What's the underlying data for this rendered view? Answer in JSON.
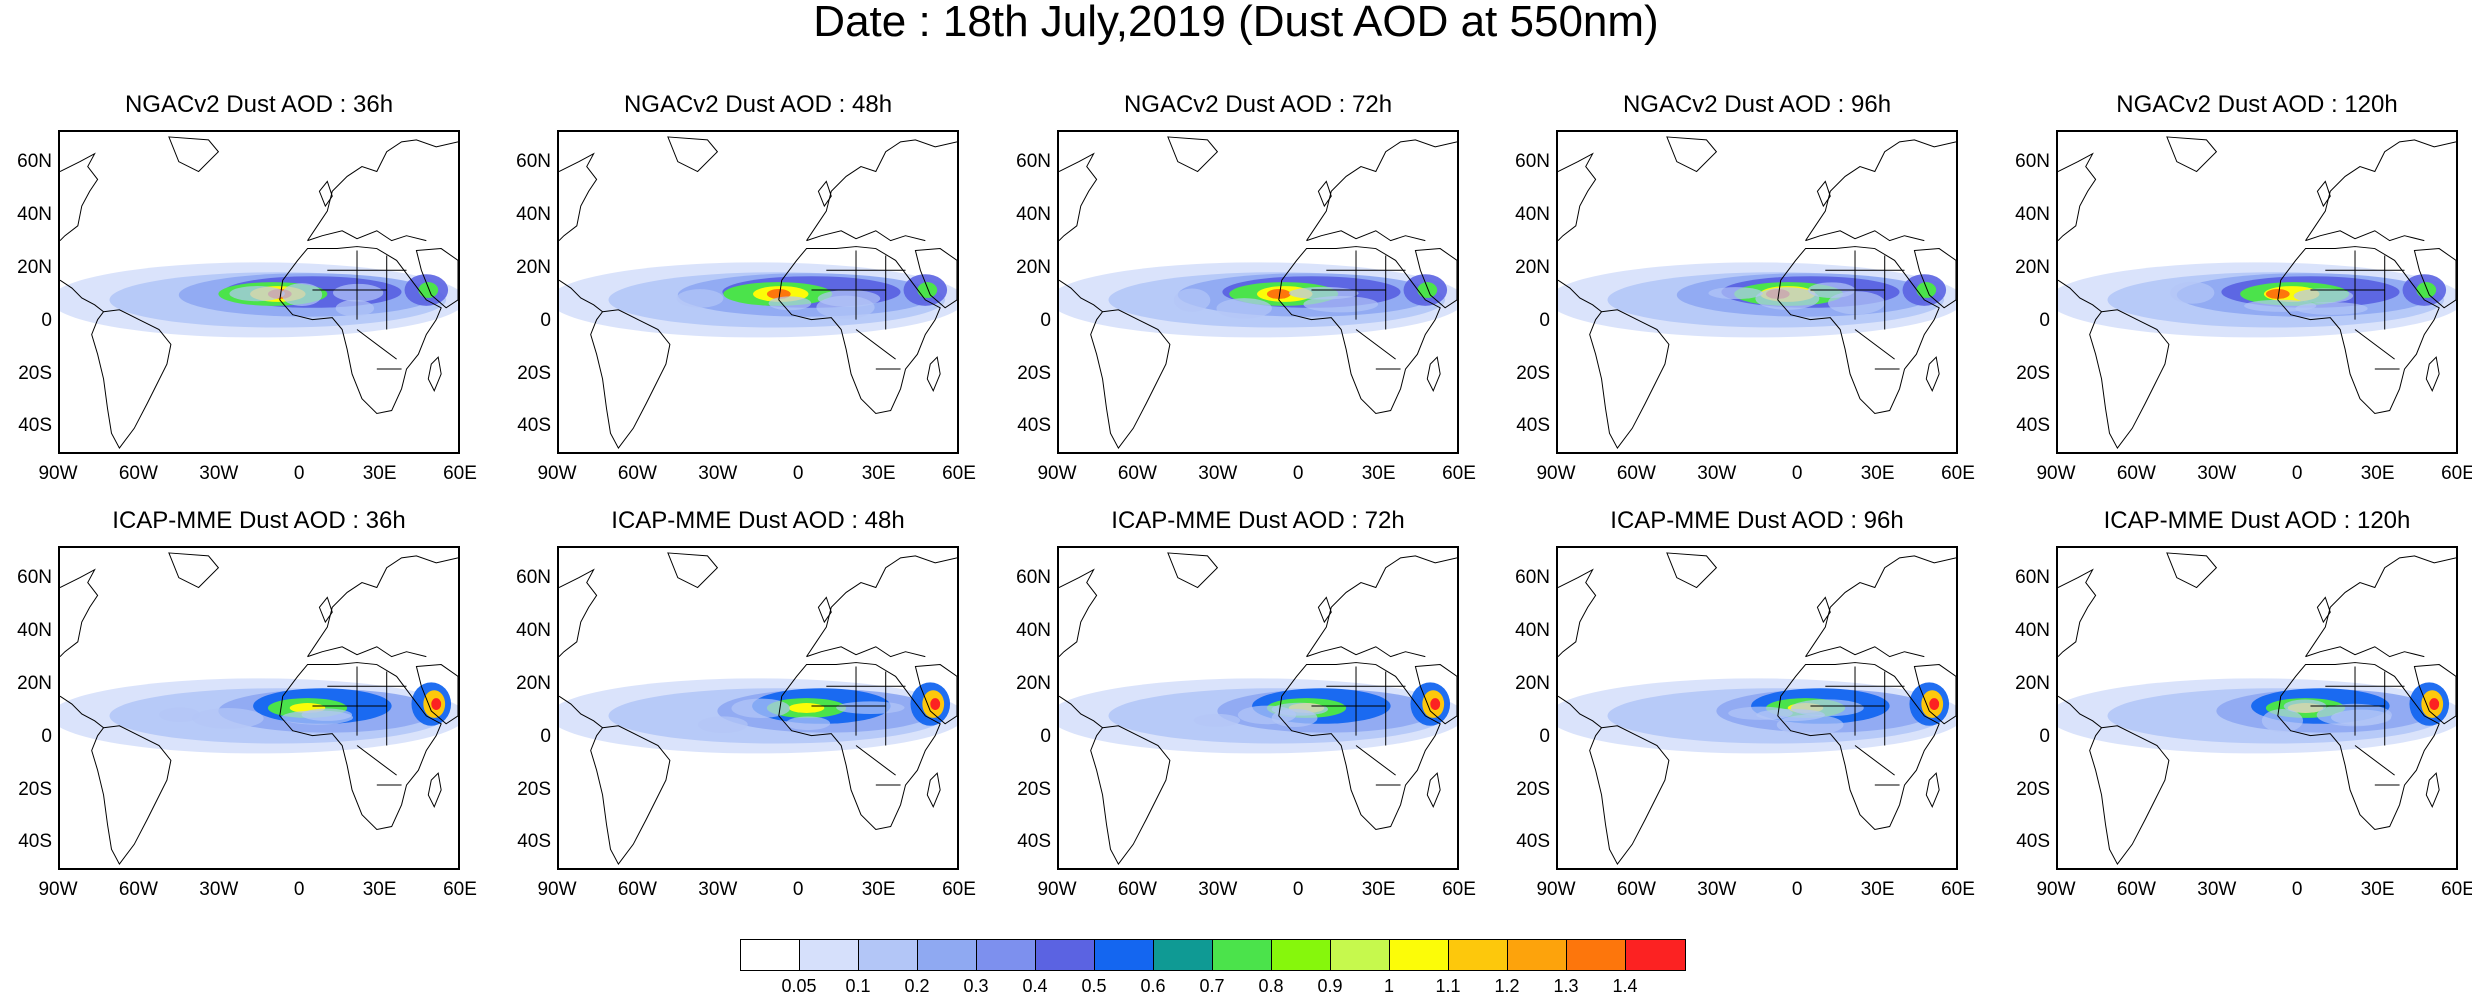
{
  "title": "Date : 18th July,2019 (Dust AOD at 550nm)",
  "panels": [
    {
      "title": "NGACv2 Dust AOD : 36h"
    },
    {
      "title": "NGACv2 Dust AOD : 48h"
    },
    {
      "title": "NGACv2 Dust AOD : 72h"
    },
    {
      "title": "NGACv2 Dust AOD : 96h"
    },
    {
      "title": "NGACv2 Dust AOD : 120h"
    },
    {
      "title": "ICAP-MME Dust AOD : 36h"
    },
    {
      "title": "ICAP-MME Dust AOD : 48h"
    },
    {
      "title": "ICAP-MME Dust AOD : 72h"
    },
    {
      "title": "ICAP-MME Dust AOD : 96h"
    },
    {
      "title": "ICAP-MME Dust AOD : 120h"
    }
  ],
  "lat_ticks": [
    "60N",
    "40N",
    "20N",
    "0",
    "20S",
    "40S"
  ],
  "lon_ticks": [
    "90W",
    "60W",
    "30W",
    "0",
    "30E",
    "60E"
  ],
  "colorbar": {
    "labels": [
      "0.05",
      "0.1",
      "0.2",
      "0.3",
      "0.4",
      "0.5",
      "0.6",
      "0.7",
      "0.8",
      "0.9",
      "1",
      "1.1",
      "1.2",
      "1.3",
      "1.4"
    ],
    "colors": [
      "#ffffff",
      "#d6e0fb",
      "#b3c6f7",
      "#8fa9f2",
      "#7d90ee",
      "#5b63e2",
      "#1466f0",
      "#0f9a94",
      "#4be34b",
      "#86f70c",
      "#c6f94d",
      "#fcfc08",
      "#fdc80c",
      "#fda30c",
      "#fd760c",
      "#fc2222"
    ]
  },
  "colors": {
    "land_line": "#000000",
    "background": "#ffffff"
  }
}
